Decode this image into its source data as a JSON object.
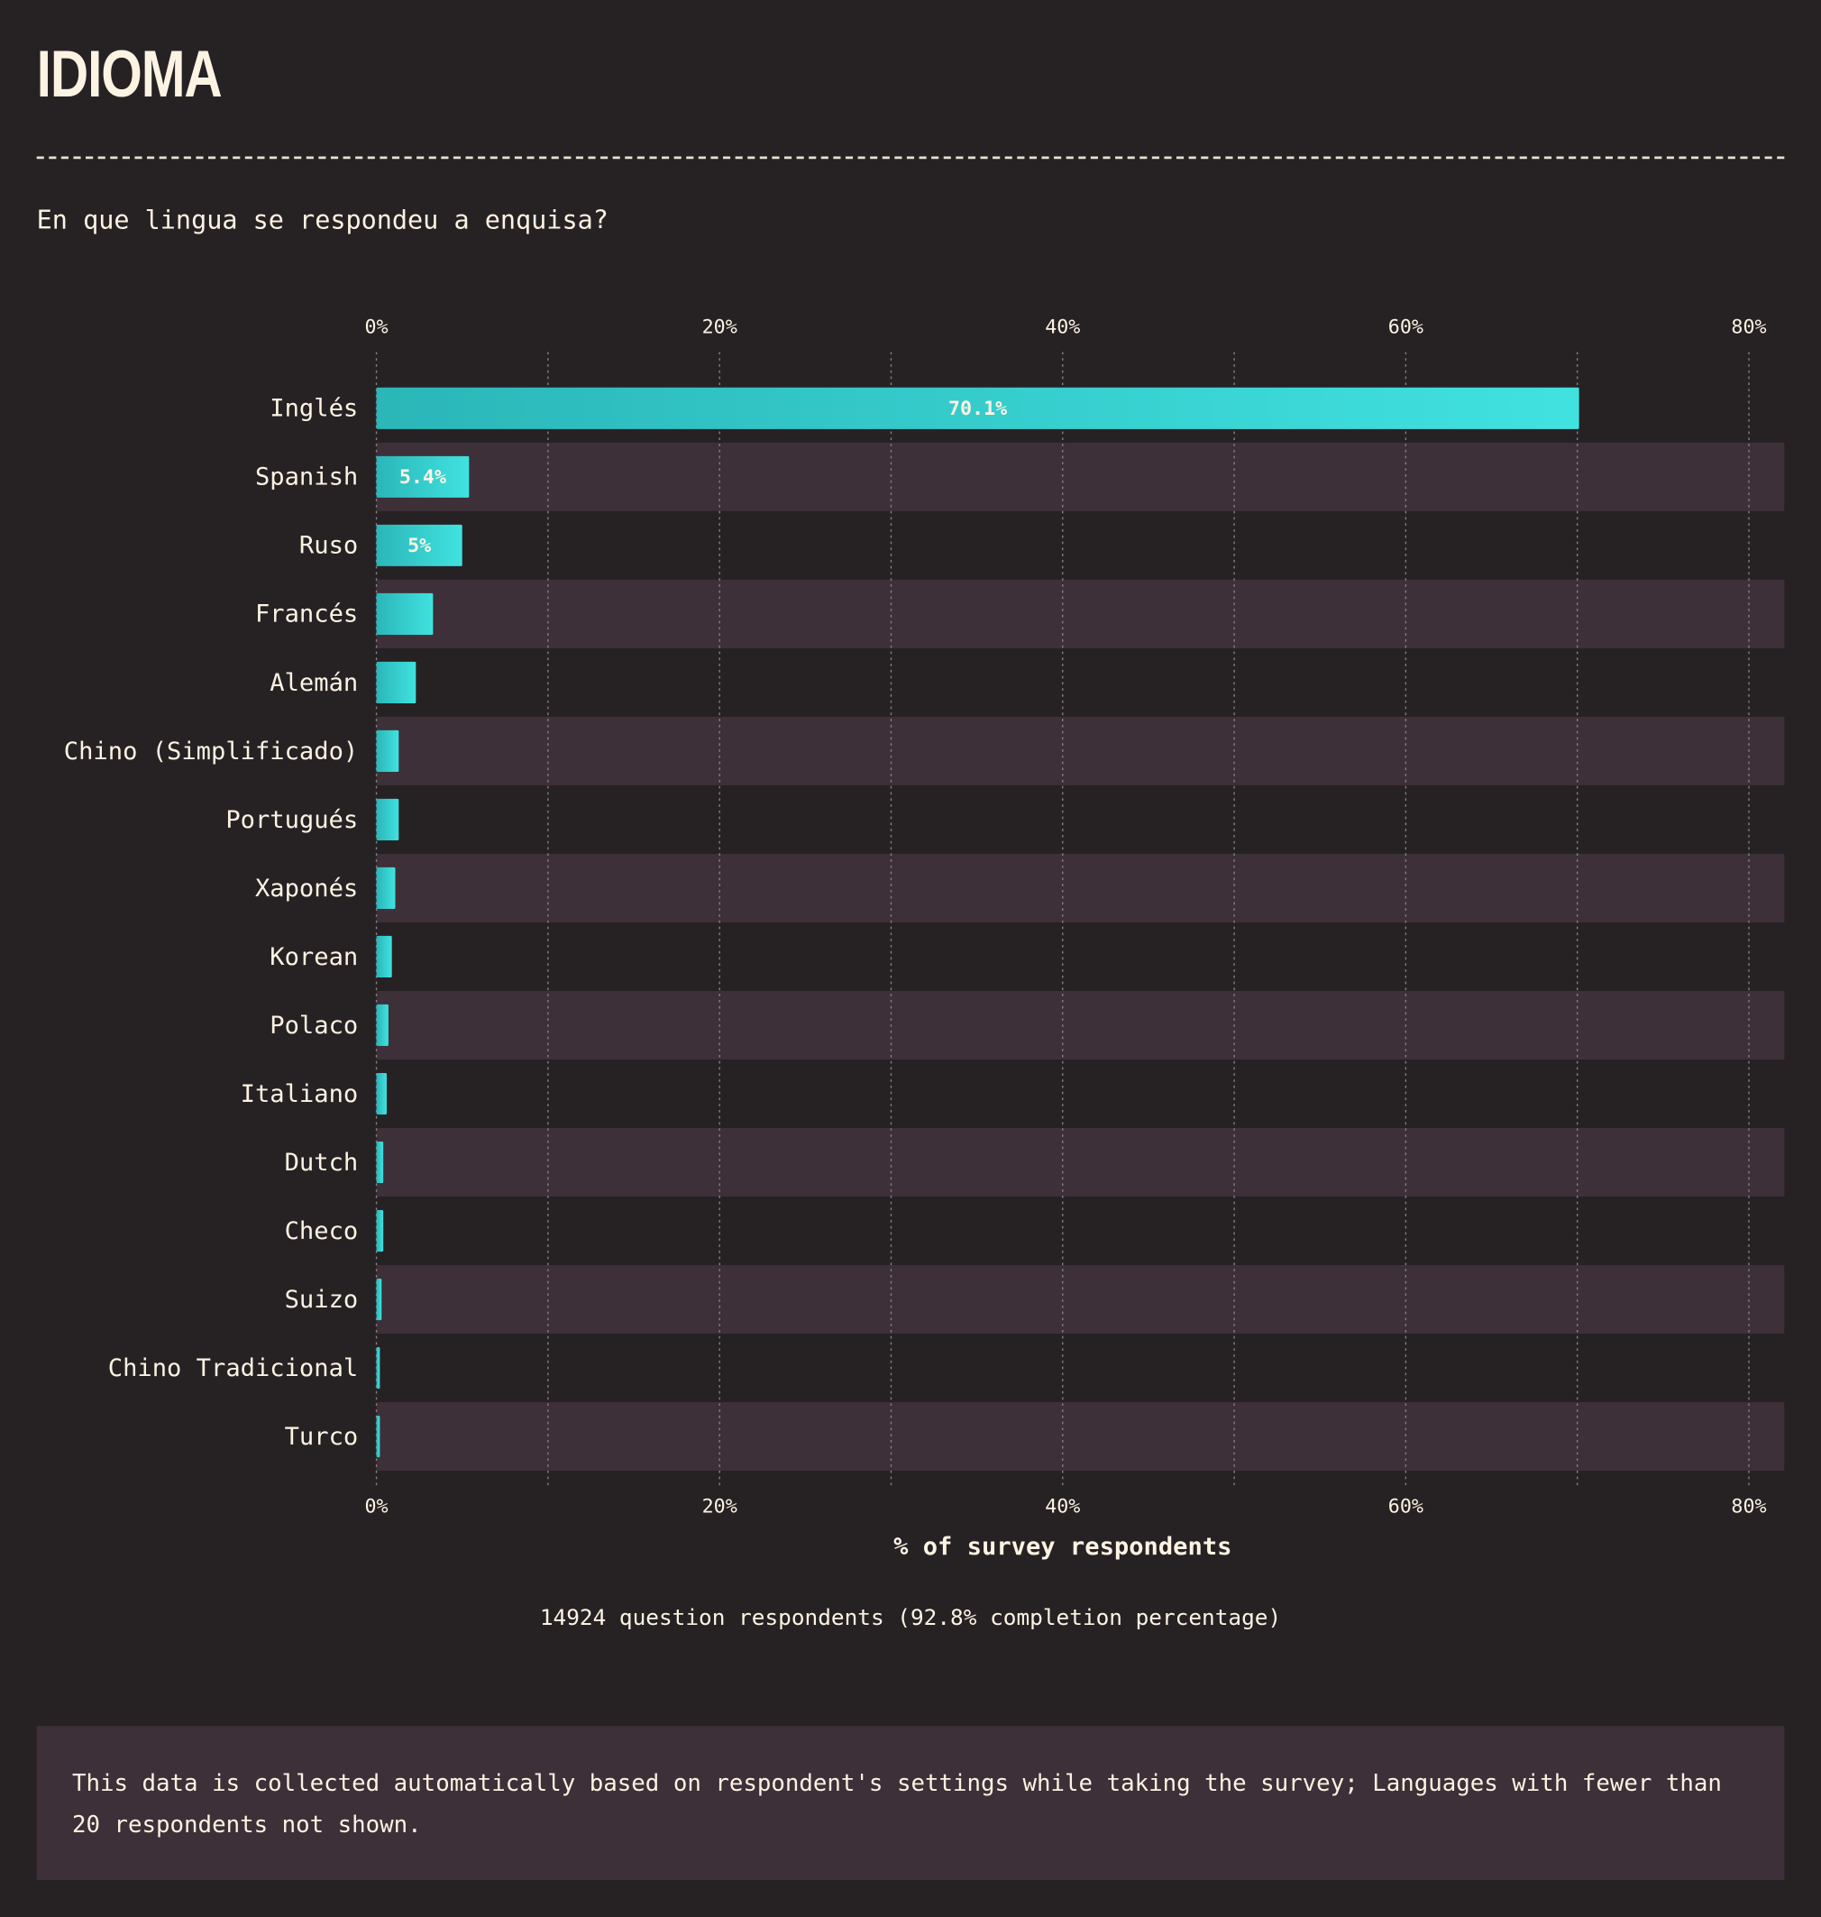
{
  "chart_data": {
    "type": "barh",
    "title": "IDIOMA",
    "subtitle": "En que lingua se respondeu a enquisa?",
    "xlabel": "% of survey respondents",
    "note": "14924 question respondents (92.8% completion percentage)",
    "footnote": "This data is collected automatically based on respondent's settings while taking the survey; Languages with fewer than 20 respondents not shown.",
    "categories": [
      "Inglés",
      "Spanish",
      "Ruso",
      "Francés",
      "Alemán",
      "Chino (Simplificado)",
      "Portugués",
      "Xaponés",
      "Korean",
      "Polaco",
      "Italiano",
      "Dutch",
      "Checo",
      "Suizo",
      "Chino Tradicional",
      "Turco"
    ],
    "values": [
      70.1,
      5.4,
      5,
      3.3,
      2.3,
      1.3,
      1.3,
      1.1,
      0.9,
      0.7,
      0.6,
      0.4,
      0.4,
      0.3,
      0.2,
      0.2
    ],
    "value_labels": [
      "70.1%",
      "5.4%",
      "5%",
      null,
      null,
      null,
      null,
      null,
      null,
      null,
      null,
      null,
      null,
      null,
      null,
      null
    ],
    "color": "#3adcdc",
    "xlim": [
      0,
      80
    ],
    "xticks": [
      {
        "value": 0,
        "label": "0%"
      },
      {
        "value": 20,
        "label": "20%"
      },
      {
        "value": 40,
        "label": "40%"
      },
      {
        "value": 60,
        "label": "60%"
      },
      {
        "value": 80,
        "label": "80%"
      }
    ],
    "xminor": [
      10,
      30,
      50,
      70
    ],
    "grid": true
  }
}
